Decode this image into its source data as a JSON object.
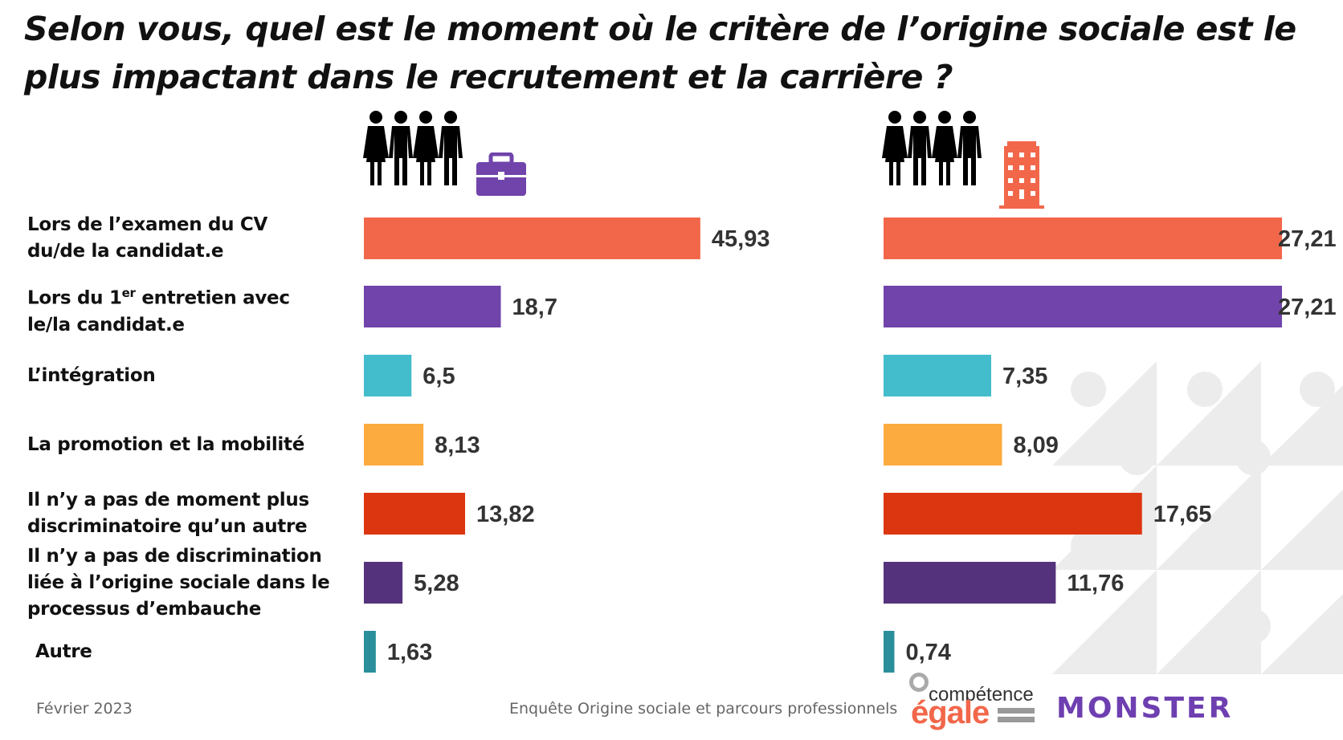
{
  "chart_data": [
    {
      "type": "bar",
      "orientation": "horizontal",
      "group": "candidates",
      "icon": "people-briefcase-icon",
      "categories": [
        "Lors de l’examen du CV du/de la candidat.e",
        "Lors du 1er entretien avec le/la candidat.e",
        "L’intégration",
        "La promotion et la mobilité",
        "Il n’y a pas de moment plus discriminatoire qu’un autre",
        "Il n’y a pas de discrimination liée à l’origine sociale dans le processus d’embauche",
        "Autre"
      ],
      "values": [
        45.93,
        18.7,
        6.5,
        8.13,
        13.82,
        5.28,
        1.63
      ],
      "value_labels": [
        "45,93",
        "18,7",
        "6,5",
        "8,13",
        "13,82",
        "5,28",
        "1,63"
      ]
    },
    {
      "type": "bar",
      "orientation": "horizontal",
      "group": "companies",
      "icon": "people-building-icon",
      "categories": [
        "Lors de l’examen du CV du/de la candidat.e",
        "Lors du 1er entretien avec le/la candidat.e",
        "L’intégration",
        "La promotion et la mobilité",
        "Il n’y a pas de moment plus discriminatoire qu’un autre",
        "Il n’y a pas de discrimination liée à l’origine sociale dans le processus d’embauche",
        "Autre"
      ],
      "values": [
        27.21,
        27.21,
        7.35,
        8.09,
        17.65,
        11.76,
        0.74
      ],
      "value_labels": [
        "27,21",
        "27,21",
        "7,35",
        "8,09",
        "17,65",
        "11,76",
        "0,74"
      ]
    }
  ],
  "title": "Selon vous, quel est le moment où le critère de l’origine sociale est le plus impactant dans le recrutement et la carrière ?",
  "labels": [
    {
      "pre": "Lors de l’examen du CV du/de la candidat.e"
    },
    {
      "pre": "Lors du 1",
      "sup": "er",
      "post": " entretien avec le/la candidat.e"
    },
    {
      "pre": "L’intégration"
    },
    {
      "pre": "La promotion et la mobilité"
    },
    {
      "pre": "Il n’y a pas de moment plus discriminatoire qu’un autre"
    },
    {
      "pre": "Il n’y a pas de discrimination liée à l’origine sociale dans le processus d’embauche"
    },
    {
      "pre": "Autre"
    }
  ],
  "colors": [
    "#f2674a",
    "#7044ab",
    "#43bccc",
    "#fcab3f",
    "#dc3611",
    "#54337c",
    "#2a8f9b"
  ],
  "footer": {
    "date": "Février 2023",
    "source": "Enquête Origine sociale et parcours professionnels"
  },
  "logos": {
    "competence": "compétence",
    "egale": "égale",
    "monster": "MONSTER"
  }
}
